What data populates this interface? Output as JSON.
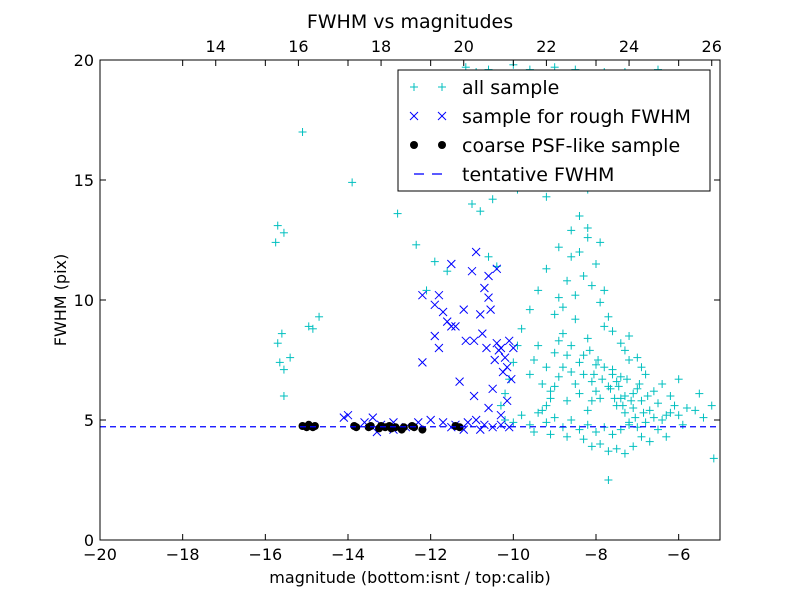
{
  "chart_data": {
    "type": "scatter",
    "title": "FWHM vs magnitudes",
    "xlabel": "magnitude (bottom:isnt / top:calib)",
    "ylabel": "FWHM (pix)",
    "xlim": [
      -20,
      -5
    ],
    "ylim": [
      0,
      20
    ],
    "x_ticks": [
      -20,
      -18,
      -16,
      -14,
      -12,
      -10,
      -8,
      -6
    ],
    "x_tick_labels": [
      "−20",
      "−18",
      "−16",
      "−14",
      "−12",
      "−10",
      "−8",
      "−6"
    ],
    "y_ticks": [
      0,
      5,
      10,
      15,
      20
    ],
    "y_tick_labels": [
      "0",
      "5",
      "10",
      "15",
      "20"
    ],
    "top_axis": {
      "offset": 31.2,
      "ticks": [
        14,
        16,
        18,
        20,
        22,
        24,
        26
      ],
      "tick_labels": [
        "14",
        "16",
        "18",
        "20",
        "22",
        "24",
        "26"
      ]
    },
    "grid": false,
    "legend_position": "top-right",
    "series": [
      {
        "name": "all sample",
        "marker": "+",
        "color": "#00bfbf",
        "points": [
          [
            -15.7,
            13.1
          ],
          [
            -15.75,
            12.4
          ],
          [
            -15.55,
            12.8
          ],
          [
            -15.7,
            8.2
          ],
          [
            -15.6,
            8.6
          ],
          [
            -15.65,
            7.4
          ],
          [
            -15.55,
            7.1
          ],
          [
            -15.4,
            7.6
          ],
          [
            -15.55,
            6.0
          ],
          [
            -15.1,
            17.0
          ],
          [
            -14.95,
            8.9
          ],
          [
            -14.85,
            8.8
          ],
          [
            -14.7,
            9.3
          ],
          [
            -13.9,
            14.9
          ],
          [
            -12.8,
            13.6
          ],
          [
            -12.35,
            12.3
          ],
          [
            -12.1,
            10.4
          ],
          [
            -11.9,
            11.6
          ],
          [
            -11.6,
            11.2
          ],
          [
            -11.0,
            14.0
          ],
          [
            -10.8,
            13.7
          ],
          [
            -10.5,
            14.2
          ],
          [
            -10.6,
            11.8
          ],
          [
            -10.4,
            11.4
          ],
          [
            -11.15,
            19.7
          ],
          [
            -10.9,
            19.5
          ],
          [
            -10.6,
            19.6
          ],
          [
            -10.4,
            19.4
          ],
          [
            -10.0,
            19.8
          ],
          [
            -9.6,
            19.6
          ],
          [
            -9.0,
            19.7
          ],
          [
            -8.5,
            19.6
          ],
          [
            -7.8,
            19.5
          ],
          [
            -7.3,
            19.5
          ],
          [
            -6.9,
            19.4
          ],
          [
            -6.5,
            19.6
          ],
          [
            -9.9,
            14.6
          ],
          [
            -9.2,
            14.3
          ],
          [
            -8.6,
            15.2
          ],
          [
            -8.2,
            14.6
          ],
          [
            -7.9,
            16.0
          ],
          [
            -7.1,
            14.8
          ],
          [
            -5.5,
            6.1
          ],
          [
            -5.2,
            5.6
          ],
          [
            -5.15,
            3.4
          ],
          [
            -7.7,
            2.5
          ],
          [
            -10.2,
            5.0
          ],
          [
            -10.0,
            4.9
          ],
          [
            -9.8,
            5.2
          ],
          [
            -9.6,
            4.8
          ],
          [
            -9.4,
            5.3
          ],
          [
            -9.2,
            4.9
          ],
          [
            -9.0,
            5.1
          ],
          [
            -8.8,
            4.7
          ],
          [
            -8.6,
            5.0
          ],
          [
            -8.4,
            4.6
          ],
          [
            -8.2,
            4.8
          ],
          [
            -8.0,
            4.5
          ],
          [
            -7.8,
            4.7
          ],
          [
            -7.6,
            4.4
          ],
          [
            -7.4,
            4.6
          ],
          [
            -7.2,
            4.8
          ],
          [
            -7.0,
            4.7
          ],
          [
            -6.8,
            4.9
          ],
          [
            -6.6,
            5.1
          ],
          [
            -6.4,
            5.0
          ],
          [
            -6.2,
            5.3
          ],
          [
            -6.0,
            5.2
          ],
          [
            -5.8,
            5.5
          ],
          [
            -5.6,
            5.4
          ],
          [
            -5.4,
            5.1
          ],
          [
            -8.3,
            4.2
          ],
          [
            -7.9,
            4.0
          ],
          [
            -7.5,
            3.8
          ],
          [
            -7.1,
            3.9
          ],
          [
            -6.7,
            4.1
          ],
          [
            -6.3,
            4.3
          ],
          [
            -8.7,
            4.3
          ],
          [
            -9.1,
            4.4
          ],
          [
            -9.5,
            4.5
          ],
          [
            -9.6,
            6.9
          ],
          [
            -9.5,
            7.5
          ],
          [
            -9.4,
            8.1
          ],
          [
            -9.3,
            6.5
          ],
          [
            -9.2,
            7.2
          ],
          [
            -9.1,
            6.2
          ],
          [
            -9.0,
            7.8
          ],
          [
            -8.9,
            6.8
          ],
          [
            -8.8,
            8.6
          ],
          [
            -8.7,
            5.8
          ],
          [
            -8.6,
            7.0
          ],
          [
            -8.5,
            9.2
          ],
          [
            -8.4,
            6.1
          ],
          [
            -8.3,
            7.7
          ],
          [
            -8.2,
            8.4
          ],
          [
            -8.1,
            6.6
          ],
          [
            -8.0,
            7.3
          ],
          [
            -7.9,
            5.9
          ],
          [
            -7.8,
            8.9
          ],
          [
            -7.7,
            6.4
          ],
          [
            -7.6,
            7.1
          ],
          [
            -7.5,
            5.6
          ],
          [
            -7.4,
            6.8
          ],
          [
            -7.3,
            6.0
          ],
          [
            -7.2,
            7.5
          ],
          [
            -7.1,
            5.5
          ],
          [
            -7.0,
            6.3
          ],
          [
            -6.9,
            5.8
          ],
          [
            -6.8,
            6.9
          ],
          [
            -6.7,
            5.4
          ],
          [
            -6.6,
            6.2
          ],
          [
            -6.5,
            5.7
          ],
          [
            -6.4,
            6.5
          ],
          [
            -6.3,
            5.2
          ],
          [
            -6.2,
            6.0
          ],
          [
            -6.1,
            5.6
          ],
          [
            -8.5,
            10.2
          ],
          [
            -8.3,
            11.0
          ],
          [
            -8.1,
            10.6
          ],
          [
            -7.9,
            9.9
          ],
          [
            -8.7,
            10.8
          ],
          [
            -8.4,
            12.0
          ],
          [
            -8.2,
            12.6
          ],
          [
            -8.0,
            11.5
          ],
          [
            -7.8,
            10.4
          ],
          [
            -8.6,
            11.8
          ],
          [
            -8.9,
            10.1
          ],
          [
            -9.0,
            9.4
          ],
          [
            -8.8,
            9.7
          ],
          [
            -7.7,
            9.3
          ],
          [
            -7.6,
            8.7
          ],
          [
            -7.4,
            8.2
          ],
          [
            -7.3,
            7.9
          ],
          [
            -7.2,
            8.5
          ],
          [
            -7.0,
            7.6
          ],
          [
            -6.9,
            7.2
          ],
          [
            -8.4,
            13.5
          ],
          [
            -8.2,
            13.0
          ],
          [
            -7.9,
            12.4
          ],
          [
            -8.6,
            12.9
          ],
          [
            -8.9,
            12.2
          ],
          [
            -9.2,
            11.3
          ],
          [
            -9.4,
            10.4
          ],
          [
            -9.6,
            9.6
          ],
          [
            -9.8,
            8.8
          ],
          [
            -9.9,
            8.1
          ],
          [
            -10.0,
            7.4
          ],
          [
            -10.1,
            6.7
          ],
          [
            -10.2,
            6.1
          ],
          [
            -10.3,
            5.6
          ],
          [
            -7.8,
            7.2
          ],
          [
            -7.6,
            6.9
          ],
          [
            -7.5,
            6.6
          ],
          [
            -7.4,
            5.9
          ],
          [
            -7.3,
            5.3
          ],
          [
            -7.2,
            4.9
          ],
          [
            -7.1,
            6.1
          ],
          [
            -8.0,
            6.2
          ],
          [
            -8.1,
            5.8
          ],
          [
            -8.2,
            5.4
          ],
          [
            -8.3,
            6.9
          ],
          [
            -8.4,
            7.4
          ],
          [
            -8.5,
            6.5
          ],
          [
            -8.6,
            8.1
          ],
          [
            -8.7,
            7.7
          ],
          [
            -8.8,
            7.2
          ],
          [
            -8.9,
            8.3
          ],
          [
            -9.0,
            6.4
          ],
          [
            -9.1,
            5.9
          ],
          [
            -9.2,
            5.6
          ],
          [
            -9.3,
            5.4
          ],
          [
            -7.65,
            6.3
          ],
          [
            -7.55,
            5.9
          ],
          [
            -7.45,
            6.4
          ],
          [
            -7.35,
            5.6
          ],
          [
            -7.25,
            6.7
          ],
          [
            -7.15,
            5.8
          ],
          [
            -7.05,
            5.1
          ],
          [
            -6.95,
            6.5
          ],
          [
            -6.85,
            5.3
          ],
          [
            -6.75,
            6.0
          ],
          [
            -7.85,
            6.7
          ],
          [
            -7.95,
            7.5
          ],
          [
            -8.05,
            6.9
          ],
          [
            -8.15,
            7.9
          ],
          [
            -6.0,
            6.7
          ],
          [
            -5.9,
            4.8
          ],
          [
            -6.5,
            4.6
          ],
          [
            -6.9,
            4.3
          ],
          [
            -7.3,
            3.6
          ],
          [
            -7.7,
            3.7
          ],
          [
            -8.1,
            3.9
          ]
        ]
      },
      {
        "name": "sample for rough FWHM",
        "marker": "x",
        "color": "#0000ff",
        "points": [
          [
            -14.1,
            5.1
          ],
          [
            -14.0,
            5.2
          ],
          [
            -13.6,
            4.9
          ],
          [
            -13.4,
            5.1
          ],
          [
            -13.2,
            4.8
          ],
          [
            -12.9,
            4.9
          ],
          [
            -12.6,
            4.7
          ],
          [
            -12.3,
            4.9
          ],
          [
            -12.0,
            5.0
          ],
          [
            -11.7,
            4.9
          ],
          [
            -11.4,
            4.8
          ],
          [
            -11.1,
            4.9
          ],
          [
            -10.9,
            5.0
          ],
          [
            -10.7,
            4.8
          ],
          [
            -10.5,
            4.7
          ],
          [
            -10.3,
            4.8
          ],
          [
            -10.1,
            4.7
          ],
          [
            -11.5,
            4.7
          ],
          [
            -11.2,
            4.6
          ],
          [
            -10.8,
            4.6
          ],
          [
            -12.2,
            7.4
          ],
          [
            -12.2,
            10.2
          ],
          [
            -11.9,
            9.8
          ],
          [
            -11.7,
            9.5
          ],
          [
            -11.9,
            8.5
          ],
          [
            -11.8,
            8.0
          ],
          [
            -11.5,
            11.5
          ],
          [
            -11.5,
            8.9
          ],
          [
            -11.4,
            8.9
          ],
          [
            -11.3,
            6.6
          ],
          [
            -11.2,
            9.6
          ],
          [
            -11.15,
            8.3
          ],
          [
            -11.0,
            11.2
          ],
          [
            -10.95,
            8.3
          ],
          [
            -10.9,
            12.0
          ],
          [
            -10.8,
            9.4
          ],
          [
            -10.75,
            8.6
          ],
          [
            -10.7,
            10.5
          ],
          [
            -10.65,
            8.0
          ],
          [
            -10.6,
            10.1
          ],
          [
            -10.55,
            9.6
          ],
          [
            -10.5,
            6.3
          ],
          [
            -10.45,
            7.5
          ],
          [
            -10.4,
            8.2
          ],
          [
            -10.35,
            7.9
          ],
          [
            -10.3,
            8.0
          ],
          [
            -10.25,
            7.0
          ],
          [
            -10.2,
            7.6
          ],
          [
            -10.15,
            7.2
          ],
          [
            -10.1,
            8.3
          ],
          [
            -10.0,
            8.0
          ],
          [
            -10.05,
            6.7
          ],
          [
            -10.95,
            6.0
          ],
          [
            -10.6,
            5.5
          ],
          [
            -10.3,
            5.2
          ],
          [
            -10.15,
            5.8
          ],
          [
            -10.4,
            11.3
          ],
          [
            -10.6,
            11.0
          ],
          [
            -11.8,
            10.2
          ],
          [
            -11.6,
            9.1
          ],
          [
            -12.9,
            4.6
          ],
          [
            -13.3,
            4.5
          ]
        ]
      },
      {
        "name": "coarse PSF-like sample",
        "marker": "o",
        "color": "#000000",
        "points": [
          [
            -15.1,
            4.75
          ],
          [
            -15.0,
            4.7
          ],
          [
            -14.95,
            4.8
          ],
          [
            -14.85,
            4.7
          ],
          [
            -14.8,
            4.75
          ],
          [
            -13.85,
            4.75
          ],
          [
            -13.8,
            4.7
          ],
          [
            -13.5,
            4.7
          ],
          [
            -13.45,
            4.75
          ],
          [
            -13.25,
            4.65
          ],
          [
            -13.2,
            4.75
          ],
          [
            -13.1,
            4.7
          ],
          [
            -13.0,
            4.75
          ],
          [
            -12.95,
            4.65
          ],
          [
            -12.85,
            4.7
          ],
          [
            -12.7,
            4.6
          ],
          [
            -12.65,
            4.7
          ],
          [
            -12.45,
            4.75
          ],
          [
            -12.4,
            4.7
          ],
          [
            -12.2,
            4.6
          ],
          [
            -11.4,
            4.75
          ],
          [
            -11.3,
            4.7
          ]
        ]
      },
      {
        "name": "tentative FWHM",
        "type": "hline",
        "style": "dashed",
        "color": "#0000ff",
        "y": 4.72
      }
    ]
  }
}
